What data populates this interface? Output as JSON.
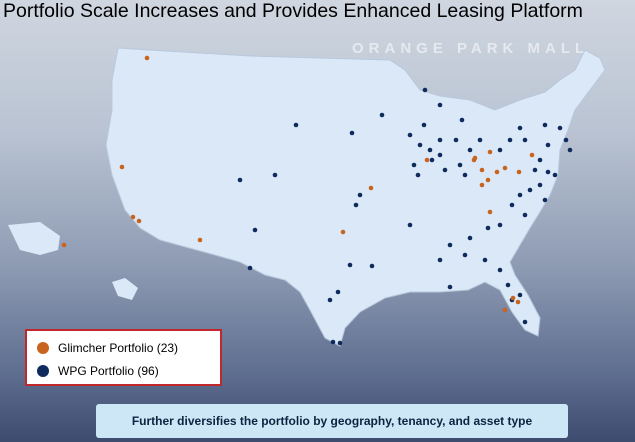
{
  "title": "Portfolio Scale Increases and Provides Enhanced Leasing Platform",
  "background_sign": "ORANGE PARK MALL",
  "legend": [
    {
      "label": "Glimcher Portfolio (23)",
      "color": "#c8641e"
    },
    {
      "label": "WPG Portfolio (96)",
      "color": "#0f2a5c"
    }
  ],
  "footer": "Further diversifies the portfolio by geography, tenancy, and asset type"
}
